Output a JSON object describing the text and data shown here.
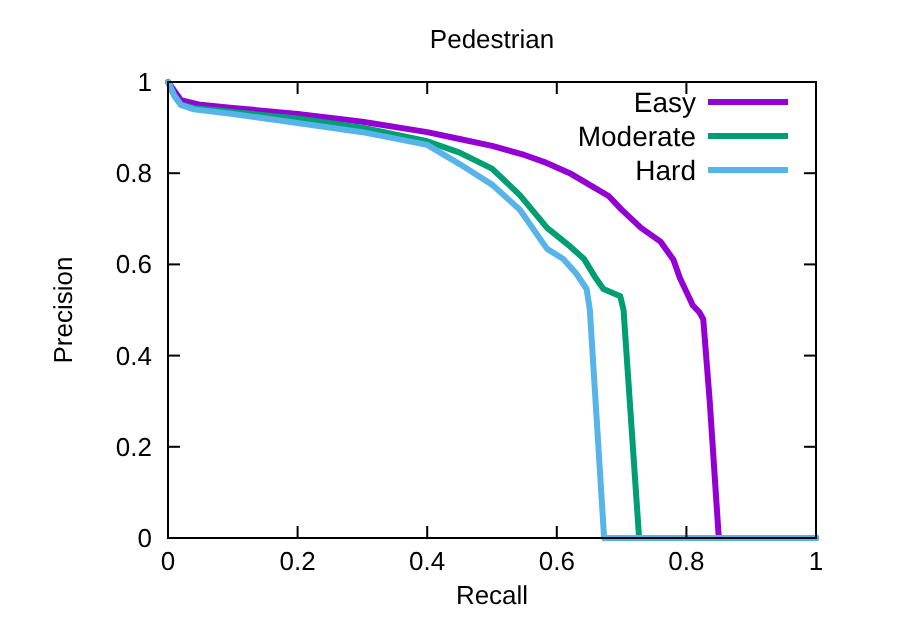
{
  "chart_data": {
    "type": "line",
    "title": "Pedestrian",
    "xlabel": "Recall",
    "ylabel": "Precision",
    "xlim": [
      0,
      1
    ],
    "ylim": [
      0,
      1
    ],
    "xticks": [
      0,
      0.2,
      0.4,
      0.6,
      0.8,
      1
    ],
    "yticks": [
      0,
      0.2,
      0.4,
      0.6,
      0.8,
      1
    ],
    "legend": "top right",
    "grid": false,
    "marker": "none",
    "line_style": "solid",
    "series": [
      {
        "name": "Easy",
        "color": "#9400d3",
        "x": [
          0,
          0.02,
          0.05,
          0.1,
          0.2,
          0.3,
          0.4,
          0.45,
          0.5,
          0.55,
          0.58,
          0.62,
          0.65,
          0.68,
          0.7,
          0.73,
          0.76,
          0.78,
          0.79,
          0.8,
          0.81,
          0.82,
          0.826,
          0.836,
          0.85,
          1
        ],
        "values": [
          1,
          0.96,
          0.95,
          0.943,
          0.93,
          0.913,
          0.89,
          0.875,
          0.86,
          0.84,
          0.825,
          0.8,
          0.775,
          0.75,
          0.72,
          0.68,
          0.65,
          0.61,
          0.57,
          0.54,
          0.51,
          0.495,
          0.48,
          0.3,
          0,
          0
        ]
      },
      {
        "name": "Moderate",
        "color": "#009e73",
        "x": [
          0,
          0.01,
          0.02,
          0.04,
          0.1,
          0.2,
          0.3,
          0.4,
          0.45,
          0.5,
          0.543,
          0.585,
          0.62,
          0.642,
          0.66,
          0.672,
          0.698,
          0.703,
          0.715,
          0.727,
          1
        ],
        "values": [
          1,
          0.97,
          0.95,
          0.943,
          0.934,
          0.92,
          0.9,
          0.87,
          0.845,
          0.81,
          0.752,
          0.68,
          0.64,
          0.612,
          0.57,
          0.546,
          0.53,
          0.5,
          0.25,
          0,
          0
        ]
      },
      {
        "name": "Hard",
        "color": "#56b4e9",
        "x": [
          0,
          0.01,
          0.02,
          0.04,
          0.1,
          0.2,
          0.3,
          0.4,
          0.45,
          0.5,
          0.543,
          0.585,
          0.61,
          0.63,
          0.646,
          0.651,
          0.662,
          0.673,
          1
        ],
        "values": [
          1,
          0.97,
          0.95,
          0.94,
          0.93,
          0.91,
          0.89,
          0.862,
          0.82,
          0.775,
          0.72,
          0.634,
          0.612,
          0.58,
          0.546,
          0.5,
          0.25,
          0,
          0
        ]
      }
    ]
  }
}
